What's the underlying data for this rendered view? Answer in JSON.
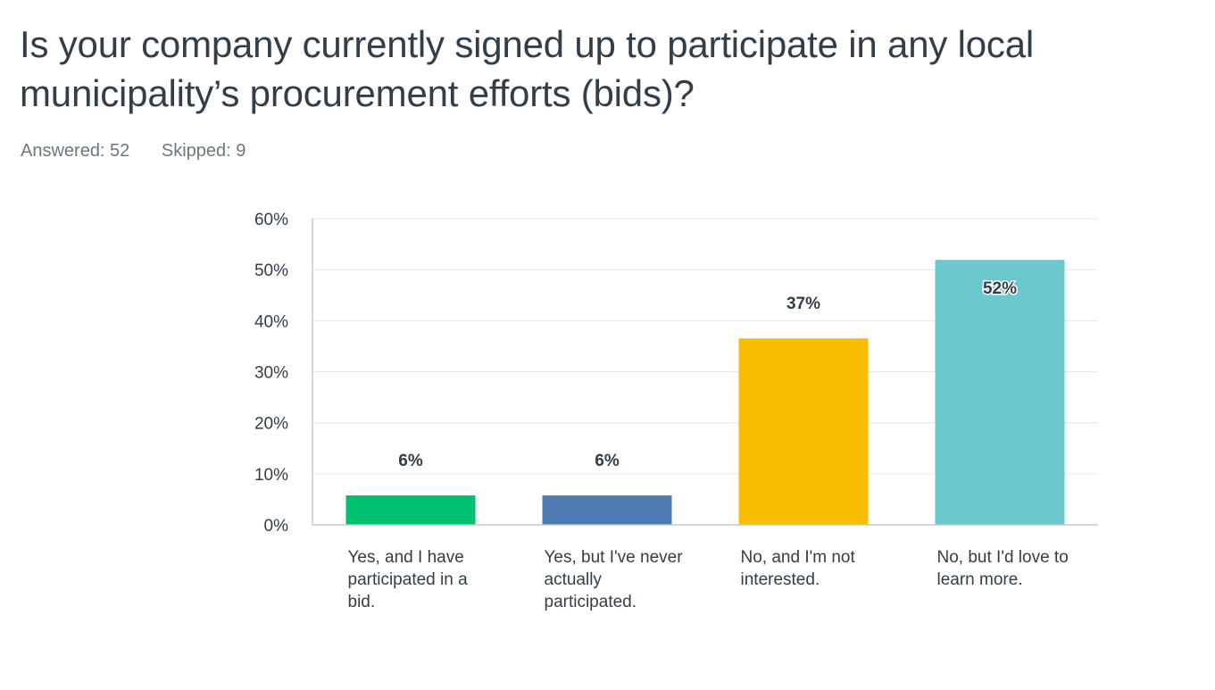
{
  "question": {
    "title": "Is your company currently signed up to participate in any local municipality’s procurement efforts (bids)?",
    "answered": "Answered: 52",
    "skipped": "Skipped: 9"
  },
  "chart_data": {
    "type": "bar",
    "categories": [
      "Yes, and I have participated in a bid.",
      "Yes, but I've never actually participated.",
      "No, and I'm not interested.",
      "No, but I'd love to learn more."
    ],
    "values": [
      5.77,
      5.77,
      36.54,
      51.92
    ],
    "data_labels": [
      "6%",
      "6%",
      "37%",
      "52%"
    ],
    "colors": [
      "#00bf6f",
      "#507cb6",
      "#f9be00",
      "#6bc8cd"
    ],
    "yticks": [
      "0%",
      "10%",
      "20%",
      "30%",
      "40%",
      "50%",
      "60%"
    ],
    "ylim": [
      0,
      60
    ],
    "grid": true,
    "legend": "none"
  }
}
